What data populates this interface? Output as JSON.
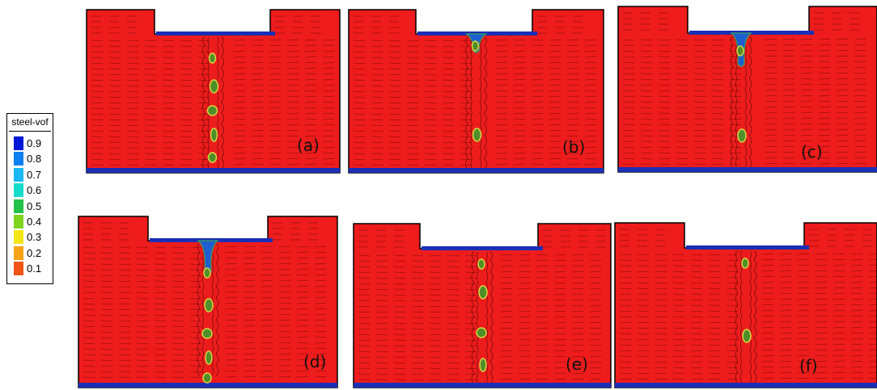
{
  "legend": {
    "title": "steel-vof",
    "entries": [
      {
        "label": "0.9",
        "color": "#0018d8"
      },
      {
        "label": "0.8",
        "color": "#0e7ff0"
      },
      {
        "label": "0.7",
        "color": "#19b8f2"
      },
      {
        "label": "0.6",
        "color": "#17dccb"
      },
      {
        "label": "0.5",
        "color": "#22c24a"
      },
      {
        "label": "0.4",
        "color": "#7ed31c"
      },
      {
        "label": "0.3",
        "color": "#f3e617"
      },
      {
        "label": "0.2",
        "color": "#f7a313"
      },
      {
        "label": "0.1",
        "color": "#f05517"
      }
    ],
    "base_color": "#f01414"
  },
  "panels": [
    {
      "label": "(a)",
      "id": "a"
    },
    {
      "label": "(b)",
      "id": "b"
    },
    {
      "label": "(c)",
      "id": "c"
    },
    {
      "label": "(d)",
      "id": "d"
    },
    {
      "label": "(e)",
      "id": "e"
    },
    {
      "label": "(f)",
      "id": "f"
    }
  ],
  "colors": {
    "field": "#ee1c1c",
    "steel_layer": "#1b2fb5",
    "vectors": "#3a0000",
    "bubble_fill": "#4f8f2a",
    "bubble_edge": "#d8d640"
  }
}
